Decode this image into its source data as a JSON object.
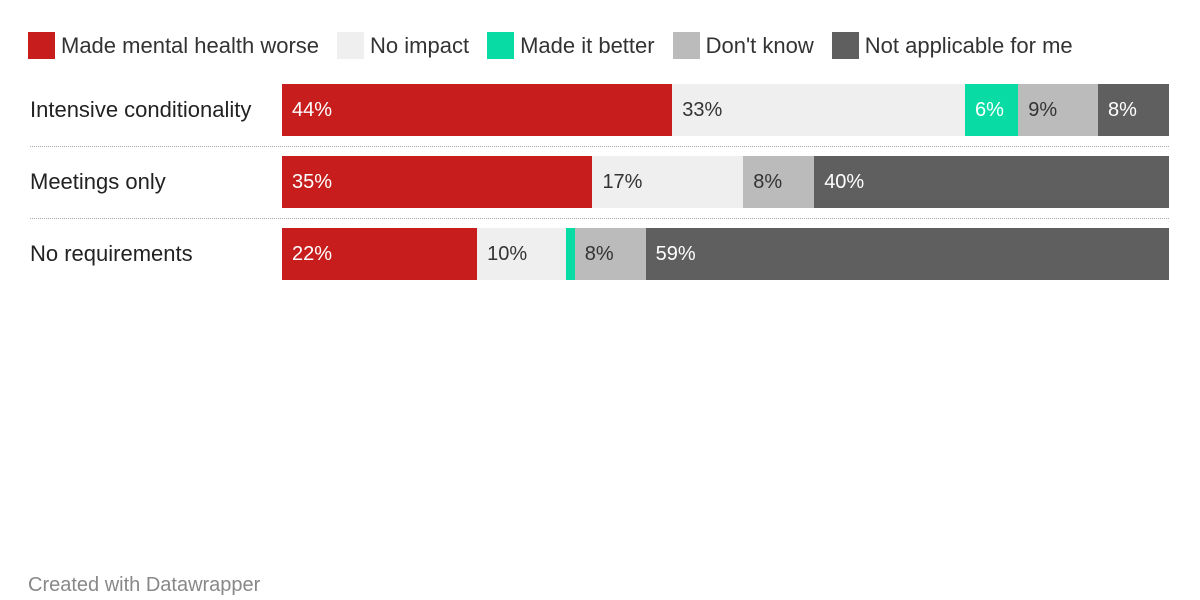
{
  "chart_data": {
    "type": "bar",
    "orientation": "horizontal",
    "stacked": true,
    "categories": [
      "Intensive conditionality",
      "Meetings only",
      "No requirements"
    ],
    "series": [
      {
        "name": "Made mental health worse",
        "color": "#c71e1d",
        "values": [
          44,
          35,
          22
        ],
        "labels": [
          "44%",
          "35%",
          "22%"
        ]
      },
      {
        "name": "No impact",
        "color": "#efefef",
        "values": [
          33,
          17,
          10
        ],
        "labels": [
          "33%",
          "17%",
          "10%"
        ]
      },
      {
        "name": "Made it better",
        "color": "#09dba5",
        "values": [
          6,
          0,
          1
        ],
        "labels": [
          "6%",
          "",
          ""
        ]
      },
      {
        "name": "Don't know",
        "color": "#bbbbbb",
        "values": [
          9,
          8,
          8
        ],
        "labels": [
          "9%",
          "8%",
          "8%"
        ]
      },
      {
        "name": "Not applicable for me",
        "color": "#5f5f5f",
        "values": [
          8,
          40,
          59
        ],
        "labels": [
          "8%",
          "40%",
          "59%"
        ]
      }
    ],
    "legend_position": "top",
    "xlim": [
      0,
      100
    ]
  },
  "footer": "Created with Datawrapper"
}
